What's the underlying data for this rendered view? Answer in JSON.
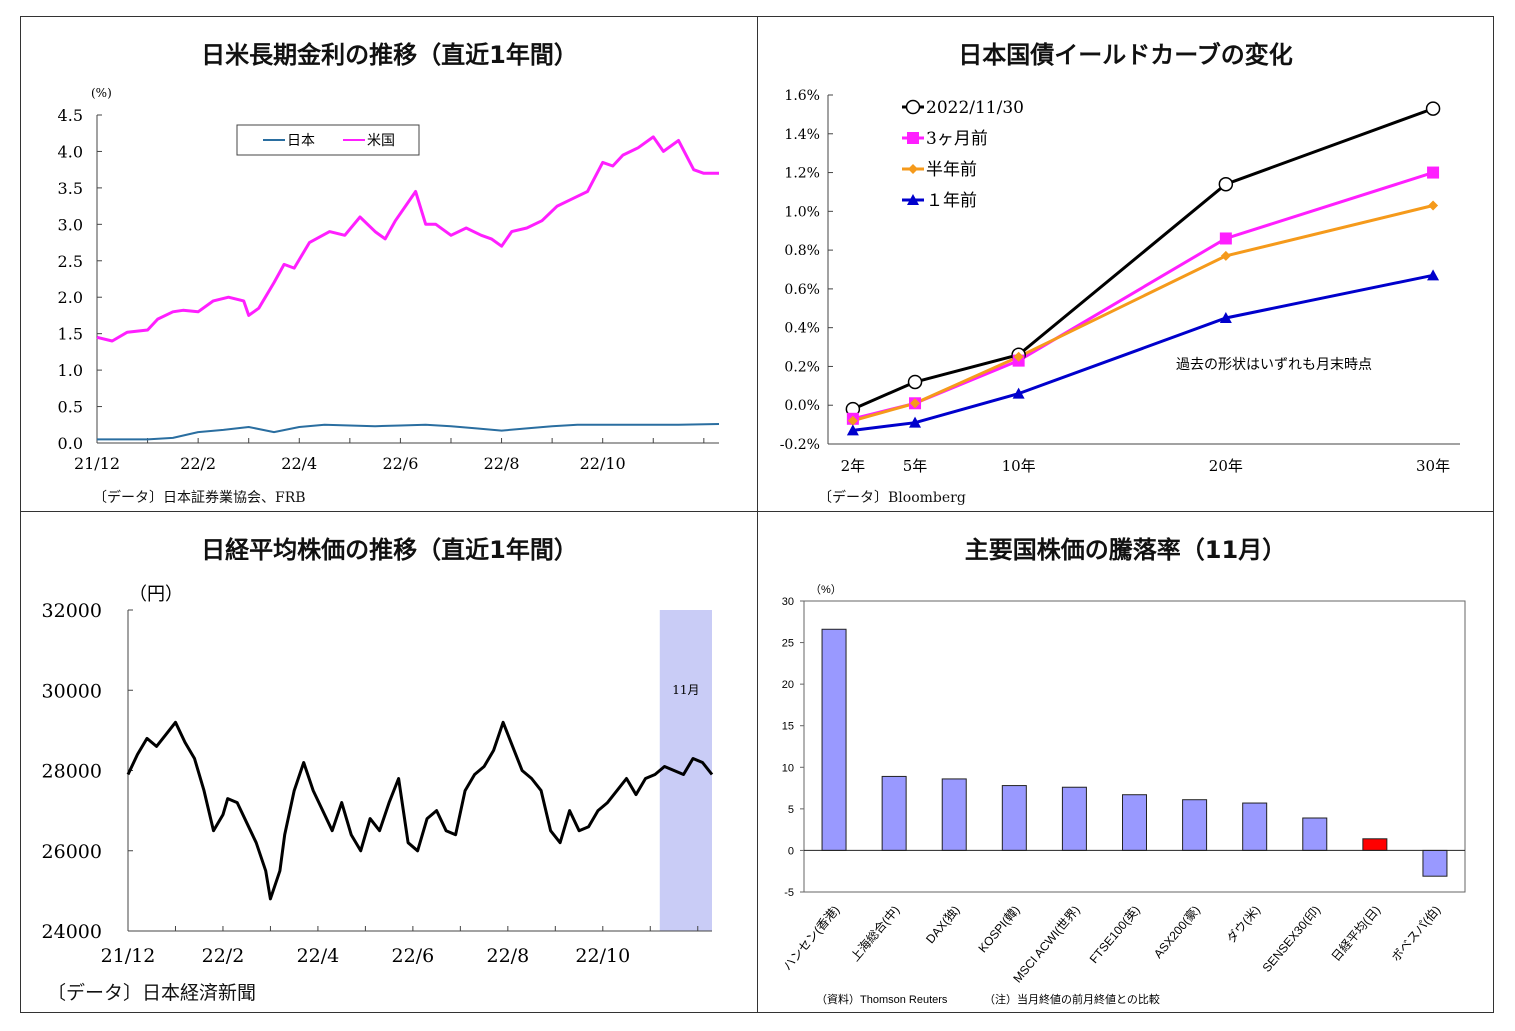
{
  "chart_data": [
    {
      "type": "line",
      "title": "日米長期金利の推移（直近1年間）",
      "ylabel": "(%)",
      "ylim": [
        0.0,
        4.5
      ],
      "yticks": [
        "0.0",
        "0.5",
        "1.0",
        "1.5",
        "2.0",
        "2.5",
        "3.0",
        "3.5",
        "4.0",
        "4.5"
      ],
      "xticks": [
        "21/12",
        "22/2",
        "22/4",
        "22/6",
        "22/8",
        "22/10"
      ],
      "xrange_months": [
        0,
        12.3
      ],
      "legend_position": "top-center",
      "source": "〔データ〕日本証券業協会、FRB",
      "series": [
        {
          "name": "日本",
          "color": "#2a6ea0",
          "x": [
            0,
            1,
            1.5,
            2,
            2.5,
            3,
            3.5,
            4,
            4.5,
            5,
            5.5,
            6,
            6.5,
            7,
            7.5,
            8,
            8.5,
            9,
            9.5,
            10,
            10.5,
            11,
            11.5,
            12.3
          ],
          "y": [
            0.05,
            0.05,
            0.07,
            0.15,
            0.18,
            0.22,
            0.15,
            0.22,
            0.25,
            0.24,
            0.23,
            0.24,
            0.25,
            0.23,
            0.2,
            0.17,
            0.2,
            0.23,
            0.25,
            0.25,
            0.25,
            0.25,
            0.25,
            0.26
          ]
        },
        {
          "name": "米国",
          "color": "#ff1fff",
          "x": [
            0,
            0.3,
            0.6,
            1,
            1.2,
            1.5,
            1.7,
            2,
            2.3,
            2.6,
            2.9,
            3,
            3.2,
            3.5,
            3.7,
            3.9,
            4.2,
            4.6,
            4.9,
            5.2,
            5.5,
            5.7,
            5.9,
            6.1,
            6.3,
            6.5,
            6.7,
            7,
            7.3,
            7.6,
            7.8,
            8,
            8.2,
            8.5,
            8.8,
            9.1,
            9.4,
            9.7,
            10,
            10.2,
            10.4,
            10.7,
            11,
            11.2,
            11.5,
            11.8,
            12,
            12.3
          ],
          "y": [
            1.45,
            1.4,
            1.52,
            1.55,
            1.7,
            1.8,
            1.82,
            1.8,
            1.95,
            2.0,
            1.95,
            1.75,
            1.85,
            2.2,
            2.45,
            2.4,
            2.75,
            2.9,
            2.85,
            3.1,
            2.9,
            2.8,
            3.05,
            3.25,
            3.45,
            3.0,
            3.0,
            2.85,
            2.95,
            2.85,
            2.8,
            2.7,
            2.9,
            2.95,
            3.05,
            3.25,
            3.35,
            3.45,
            3.85,
            3.8,
            3.95,
            4.05,
            4.2,
            4.0,
            4.15,
            3.75,
            3.7,
            3.7
          ]
        }
      ]
    },
    {
      "type": "line",
      "title": "日本国債イールドカーブの変化",
      "categories": [
        "2年",
        "5年",
        "10年",
        "20年",
        "30年"
      ],
      "x_years": [
        2,
        5,
        10,
        20,
        30
      ],
      "yticks": [
        "-0.2%",
        "0.0%",
        "0.2%",
        "0.4%",
        "0.6%",
        "0.8%",
        "1.0%",
        "1.2%",
        "1.4%",
        "1.6%"
      ],
      "ylim": [
        -0.2,
        1.6
      ],
      "annotation": "過去の形状はいずれも月末時点",
      "legend_position": "top-left",
      "source": "〔データ〕Bloomberg",
      "series": [
        {
          "name": "2022/11/30",
          "color": "#000000",
          "marker": "circle-open",
          "values": [
            -0.02,
            0.12,
            0.26,
            1.14,
            1.53
          ]
        },
        {
          "name": "3ヶ月前",
          "color": "#ff1fff",
          "marker": "square",
          "values": [
            -0.07,
            0.01,
            0.23,
            0.86,
            1.2
          ]
        },
        {
          "name": "半年前",
          "color": "#f59a1b",
          "marker": "diamond",
          "values": [
            -0.08,
            0.01,
            0.25,
            0.77,
            1.03
          ]
        },
        {
          "name": "１年前",
          "color": "#0000cc",
          "marker": "triangle",
          "values": [
            -0.13,
            -0.09,
            0.06,
            0.45,
            0.67
          ]
        }
      ]
    },
    {
      "type": "line",
      "title": "日経平均株価の推移（直近1年間）",
      "ylabel": "（円）",
      "ylim": [
        24000,
        32000
      ],
      "yticks": [
        "24000",
        "26000",
        "28000",
        "30000",
        "32000"
      ],
      "xticks": [
        "21/12",
        "22/2",
        "22/4",
        "22/6",
        "22/8",
        "22/10"
      ],
      "xrange_months": [
        0,
        12.3
      ],
      "highlight": {
        "label": "11月",
        "from": 11.2,
        "to": 12.3,
        "color": "#c9ccf6"
      },
      "source": "〔データ〕日本経済新聞",
      "series": [
        {
          "name": "",
          "color": "#000000",
          "x": [
            0,
            0.2,
            0.4,
            0.6,
            0.8,
            1,
            1.2,
            1.4,
            1.6,
            1.8,
            2,
            2.1,
            2.3,
            2.5,
            2.7,
            2.9,
            3,
            3.2,
            3.3,
            3.5,
            3.7,
            3.9,
            4.1,
            4.3,
            4.5,
            4.7,
            4.9,
            5.1,
            5.3,
            5.5,
            5.7,
            5.9,
            6.1,
            6.3,
            6.5,
            6.7,
            6.9,
            7.1,
            7.3,
            7.5,
            7.7,
            7.9,
            8.1,
            8.3,
            8.5,
            8.7,
            8.9,
            9.1,
            9.3,
            9.5,
            9.7,
            9.9,
            10.1,
            10.3,
            10.5,
            10.7,
            10.9,
            11.1,
            11.3,
            11.5,
            11.7,
            11.9,
            12.1,
            12.3
          ],
          "y": [
            27900,
            28400,
            28800,
            28600,
            28900,
            29200,
            28700,
            28300,
            27500,
            26500,
            26900,
            27300,
            27200,
            26700,
            26200,
            25500,
            24800,
            25500,
            26400,
            27500,
            28200,
            27500,
            27000,
            26500,
            27200,
            26400,
            26000,
            26800,
            26500,
            27200,
            27800,
            26200,
            26000,
            26800,
            27000,
            26500,
            26400,
            27500,
            27900,
            28100,
            28500,
            29200,
            28600,
            28000,
            27800,
            27500,
            26500,
            26200,
            27000,
            26500,
            26600,
            27000,
            27200,
            27500,
            27800,
            27400,
            27800,
            27900,
            28100,
            28000,
            27900,
            28300,
            28200,
            27900
          ]
        }
      ]
    },
    {
      "type": "bar",
      "title": "主要国株価の騰落率（11月）",
      "ylabel": "（%）",
      "ylim": [
        -5,
        30
      ],
      "yticks": [
        "-5",
        "0",
        "5",
        "10",
        "15",
        "20",
        "25",
        "30"
      ],
      "categories": [
        "ハンセン(香港)",
        "上海総合(中)",
        "DAX(独)",
        "KOSPI(韓)",
        "MSCI ACWI(世界)",
        "FTSE100(英)",
        "ASX200(豪)",
        "ダウ(米)",
        "SENSEX30(印)",
        "日経平均(日)",
        "ボベスパ(伯)"
      ],
      "values": [
        26.6,
        8.9,
        8.6,
        7.8,
        7.6,
        6.7,
        6.1,
        5.7,
        3.9,
        1.4,
        -3.1
      ],
      "colors": [
        "#9999ff",
        "#9999ff",
        "#9999ff",
        "#9999ff",
        "#9999ff",
        "#9999ff",
        "#9999ff",
        "#9999ff",
        "#9999ff",
        "#ff0000",
        "#9999ff"
      ],
      "notes": [
        "（資料）Thomson Reuters",
        "（注）当月終値の前月終値との比較"
      ]
    }
  ]
}
